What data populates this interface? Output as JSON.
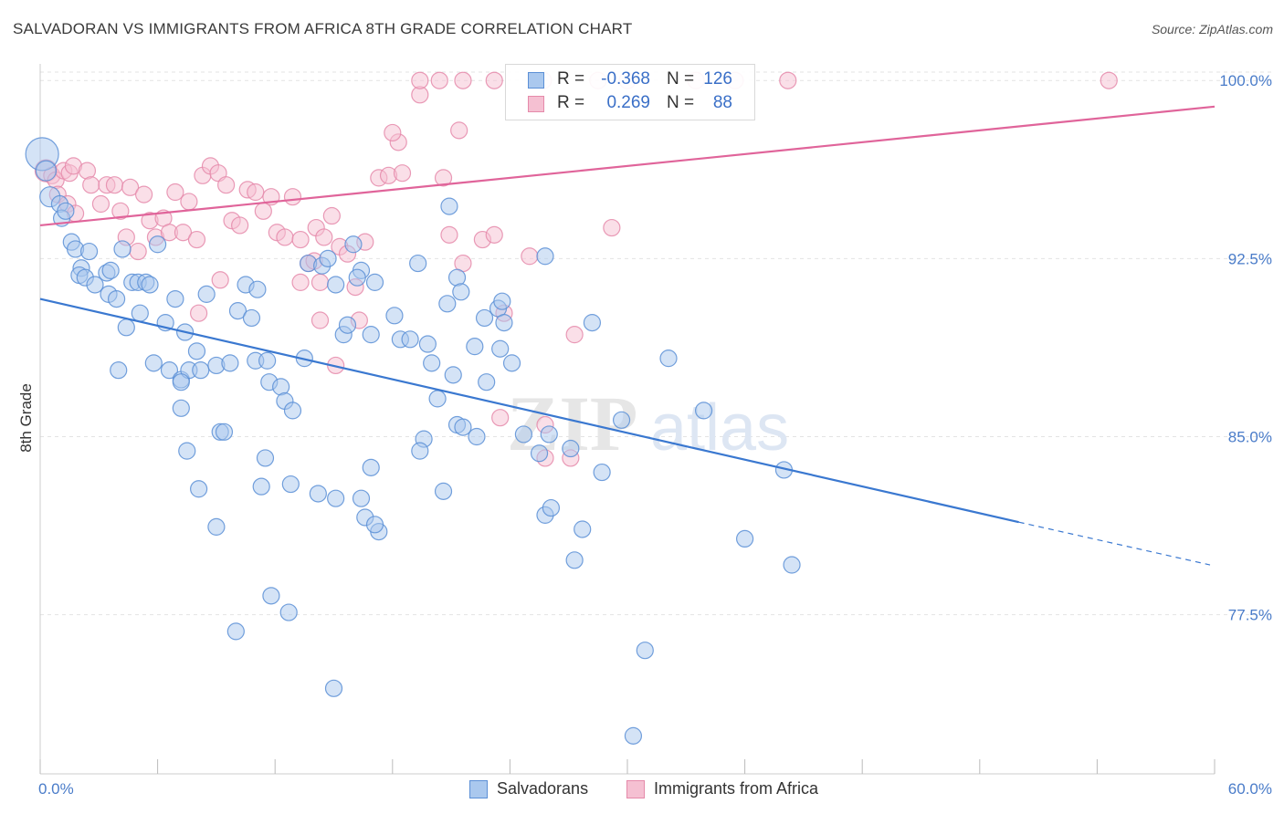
{
  "title": "SALVADORAN VS IMMIGRANTS FROM AFRICA 8TH GRADE CORRELATION CHART",
  "source": "Source: ZipAtlas.com",
  "watermark": {
    "zip": "ZIP",
    "atlas": "atlas"
  },
  "colors": {
    "blue_fill": "#aac8ee",
    "blue_stroke": "#5b8fd6",
    "blue_line": "#3a78d0",
    "pink_fill": "#f5c0d2",
    "pink_stroke": "#e58aaa",
    "pink_line": "#e0649a",
    "grid": "#e3e3e3",
    "axis_text": "#4a7cc9"
  },
  "legend": {
    "rows": [
      {
        "r_label": "R =",
        "r_value": "-0.368",
        "n_label": "N =",
        "n_value": "126",
        "series": "blue"
      },
      {
        "r_label": "R =",
        "r_value": "0.269",
        "n_label": "N =",
        "n_value": "88",
        "series": "pink"
      }
    ]
  },
  "bottom_legend": {
    "blue_label": "Salvadorans",
    "pink_label": "Immigrants from Africa"
  },
  "chart_data": {
    "type": "scatter",
    "xlabel": "",
    "ylabel": "8th Grade",
    "xlim": [
      0,
      60
    ],
    "ylim": [
      70.8,
      100.7
    ],
    "x_tick_labels": [
      "0.0%",
      "60.0%"
    ],
    "y_ticks": [
      77.5,
      85.0,
      92.5,
      100.0
    ],
    "y_tick_labels": [
      "77.5%",
      "85.0%",
      "92.5%",
      "100.0%"
    ],
    "grid": true,
    "series": [
      {
        "name": "Salvadorans",
        "color": "blue",
        "trend": {
          "x0": 0,
          "y0": 90.8,
          "x1": 50,
          "y1": 81.4,
          "dash_to_x": 60,
          "dash_to_y": 79.6
        },
        "points": [
          [
            0.1,
            96.9
          ],
          [
            0.3,
            96.2
          ],
          [
            0.5,
            95.1
          ],
          [
            1.0,
            94.8
          ],
          [
            1.1,
            94.2
          ],
          [
            1.3,
            94.5
          ],
          [
            1.6,
            93.2
          ],
          [
            1.8,
            92.9
          ],
          [
            2.1,
            92.1
          ],
          [
            2.5,
            92.8
          ],
          [
            2.0,
            91.8
          ],
          [
            2.3,
            91.7
          ],
          [
            2.8,
            91.4
          ],
          [
            3.4,
            91.9
          ],
          [
            3.6,
            92.0
          ],
          [
            4.2,
            92.9
          ],
          [
            4.7,
            91.5
          ],
          [
            5.0,
            91.5
          ],
          [
            5.4,
            91.5
          ],
          [
            5.6,
            91.4
          ],
          [
            6.0,
            93.1
          ],
          [
            3.5,
            91.0
          ],
          [
            3.9,
            90.8
          ],
          [
            4.4,
            89.6
          ],
          [
            5.1,
            90.2
          ],
          [
            6.4,
            89.8
          ],
          [
            6.9,
            90.8
          ],
          [
            7.4,
            89.4
          ],
          [
            8.5,
            91.0
          ],
          [
            8.0,
            88.6
          ],
          [
            4.0,
            87.8
          ],
          [
            5.8,
            88.1
          ],
          [
            6.6,
            87.8
          ],
          [
            7.2,
            87.4
          ],
          [
            7.6,
            87.8
          ],
          [
            8.2,
            87.8
          ],
          [
            9.0,
            88.0
          ],
          [
            9.7,
            88.1
          ],
          [
            10.1,
            90.3
          ],
          [
            10.8,
            90.0
          ],
          [
            10.5,
            91.4
          ],
          [
            11.1,
            91.2
          ],
          [
            11.0,
            88.2
          ],
          [
            11.6,
            88.2
          ],
          [
            11.7,
            87.3
          ],
          [
            12.3,
            87.1
          ],
          [
            12.5,
            86.5
          ],
          [
            12.9,
            86.1
          ],
          [
            13.5,
            88.3
          ],
          [
            13.7,
            92.3
          ],
          [
            14.4,
            92.2
          ],
          [
            14.7,
            92.5
          ],
          [
            15.1,
            91.4
          ],
          [
            15.5,
            89.3
          ],
          [
            15.7,
            89.7
          ],
          [
            16.0,
            93.1
          ],
          [
            16.4,
            92.0
          ],
          [
            16.2,
            91.7
          ],
          [
            17.1,
            91.5
          ],
          [
            16.9,
            89.3
          ],
          [
            18.1,
            90.1
          ],
          [
            18.4,
            89.1
          ],
          [
            18.9,
            89.1
          ],
          [
            19.3,
            92.3
          ],
          [
            19.8,
            88.9
          ],
          [
            20.8,
            90.6
          ],
          [
            20.0,
            88.1
          ],
          [
            21.1,
            87.6
          ],
          [
            21.3,
            91.7
          ],
          [
            21.5,
            91.1
          ],
          [
            22.2,
            88.8
          ],
          [
            22.7,
            90.0
          ],
          [
            23.4,
            90.4
          ],
          [
            23.6,
            90.7
          ],
          [
            23.7,
            89.8
          ],
          [
            22.8,
            87.3
          ],
          [
            23.5,
            88.7
          ],
          [
            24.1,
            88.1
          ],
          [
            20.9,
            94.7
          ],
          [
            19.6,
            84.9
          ],
          [
            19.4,
            84.4
          ],
          [
            20.3,
            86.6
          ],
          [
            20.6,
            82.7
          ],
          [
            21.3,
            85.5
          ],
          [
            21.6,
            85.4
          ],
          [
            22.3,
            85.0
          ],
          [
            24.7,
            85.1
          ],
          [
            25.5,
            84.3
          ],
          [
            26.0,
            85.1
          ],
          [
            27.1,
            84.5
          ],
          [
            28.2,
            89.8
          ],
          [
            25.8,
            81.7
          ],
          [
            26.1,
            82.0
          ],
          [
            27.3,
            79.8
          ],
          [
            27.7,
            81.1
          ],
          [
            28.7,
            83.5
          ],
          [
            29.7,
            85.7
          ],
          [
            7.2,
            86.2
          ],
          [
            7.5,
            84.4
          ],
          [
            8.1,
            82.8
          ],
          [
            9.2,
            85.2
          ],
          [
            9.4,
            85.2
          ],
          [
            9.0,
            81.2
          ],
          [
            11.5,
            84.1
          ],
          [
            11.3,
            82.9
          ],
          [
            12.8,
            83.0
          ],
          [
            14.2,
            82.6
          ],
          [
            15.1,
            82.4
          ],
          [
            16.4,
            82.4
          ],
          [
            16.6,
            81.6
          ],
          [
            17.3,
            81.0
          ],
          [
            16.9,
            83.7
          ],
          [
            17.1,
            81.3
          ],
          [
            7.2,
            87.3
          ],
          [
            11.8,
            78.3
          ],
          [
            12.7,
            77.6
          ],
          [
            10.0,
            76.8
          ],
          [
            15.0,
            74.4
          ],
          [
            25.8,
            92.6
          ],
          [
            30.9,
            76.0
          ],
          [
            30.3,
            72.4
          ],
          [
            32.1,
            88.3
          ],
          [
            33.9,
            86.1
          ],
          [
            36.0,
            80.7
          ],
          [
            38.0,
            83.6
          ],
          [
            38.4,
            79.6
          ]
        ]
      },
      {
        "name": "Immigrants from Africa",
        "color": "pink",
        "trend": {
          "x0": 0,
          "y0": 93.9,
          "x1": 60,
          "y1": 98.9
        },
        "points": [
          [
            0.3,
            96.2
          ],
          [
            0.6,
            96.0
          ],
          [
            0.8,
            95.8
          ],
          [
            1.2,
            96.2
          ],
          [
            1.5,
            96.1
          ],
          [
            1.7,
            96.4
          ],
          [
            0.9,
            95.2
          ],
          [
            1.4,
            94.8
          ],
          [
            1.8,
            94.4
          ],
          [
            2.4,
            96.2
          ],
          [
            2.6,
            95.6
          ],
          [
            3.1,
            94.8
          ],
          [
            3.4,
            95.6
          ],
          [
            3.8,
            95.6
          ],
          [
            4.1,
            94.5
          ],
          [
            4.4,
            93.4
          ],
          [
            4.6,
            95.5
          ],
          [
            5.0,
            92.8
          ],
          [
            5.3,
            95.2
          ],
          [
            5.6,
            94.1
          ],
          [
            5.9,
            93.4
          ],
          [
            6.3,
            94.2
          ],
          [
            6.6,
            93.6
          ],
          [
            6.9,
            95.3
          ],
          [
            7.3,
            93.6
          ],
          [
            7.6,
            94.9
          ],
          [
            8.0,
            93.3
          ],
          [
            8.3,
            96.0
          ],
          [
            8.7,
            96.4
          ],
          [
            9.1,
            96.1
          ],
          [
            9.5,
            95.6
          ],
          [
            9.8,
            94.1
          ],
          [
            10.2,
            93.9
          ],
          [
            10.6,
            95.4
          ],
          [
            11.0,
            95.3
          ],
          [
            11.4,
            94.5
          ],
          [
            11.8,
            95.1
          ],
          [
            12.1,
            93.6
          ],
          [
            12.5,
            93.4
          ],
          [
            12.9,
            95.1
          ],
          [
            13.3,
            93.3
          ],
          [
            13.7,
            92.3
          ],
          [
            14.1,
            93.8
          ],
          [
            14.5,
            93.4
          ],
          [
            14.9,
            94.3
          ],
          [
            15.3,
            93.0
          ],
          [
            15.7,
            92.7
          ],
          [
            16.1,
            91.3
          ],
          [
            16.6,
            93.2
          ],
          [
            17.3,
            95.9
          ],
          [
            17.8,
            96.0
          ],
          [
            18.5,
            96.1
          ],
          [
            18.3,
            97.4
          ],
          [
            18.0,
            97.8
          ],
          [
            19.4,
            99.4
          ],
          [
            20.6,
            95.9
          ],
          [
            20.9,
            93.5
          ],
          [
            21.6,
            92.3
          ],
          [
            21.4,
            97.9
          ],
          [
            22.6,
            93.3
          ],
          [
            23.2,
            93.5
          ],
          [
            23.7,
            90.2
          ],
          [
            25.0,
            92.6
          ],
          [
            14.3,
            89.9
          ],
          [
            15.1,
            88.0
          ],
          [
            16.3,
            89.9
          ],
          [
            9.2,
            91.6
          ],
          [
            8.1,
            90.2
          ],
          [
            13.3,
            91.5
          ],
          [
            14.0,
            92.4
          ],
          [
            14.3,
            91.5
          ],
          [
            27.3,
            89.3
          ],
          [
            23.5,
            85.8
          ],
          [
            29.2,
            93.8
          ],
          [
            25.8,
            85.5
          ],
          [
            25.8,
            84.1
          ],
          [
            27.1,
            84.1
          ],
          [
            28.5,
            100.0
          ],
          [
            19.4,
            100.0
          ],
          [
            20.4,
            100.0
          ],
          [
            21.6,
            100.0
          ],
          [
            23.2,
            100.0
          ],
          [
            25.7,
            100.0
          ],
          [
            30.0,
            100.0
          ],
          [
            33.5,
            100.0
          ],
          [
            35.5,
            100.0
          ],
          [
            38.2,
            100.0
          ],
          [
            54.6,
            100.0
          ]
        ]
      }
    ]
  }
}
